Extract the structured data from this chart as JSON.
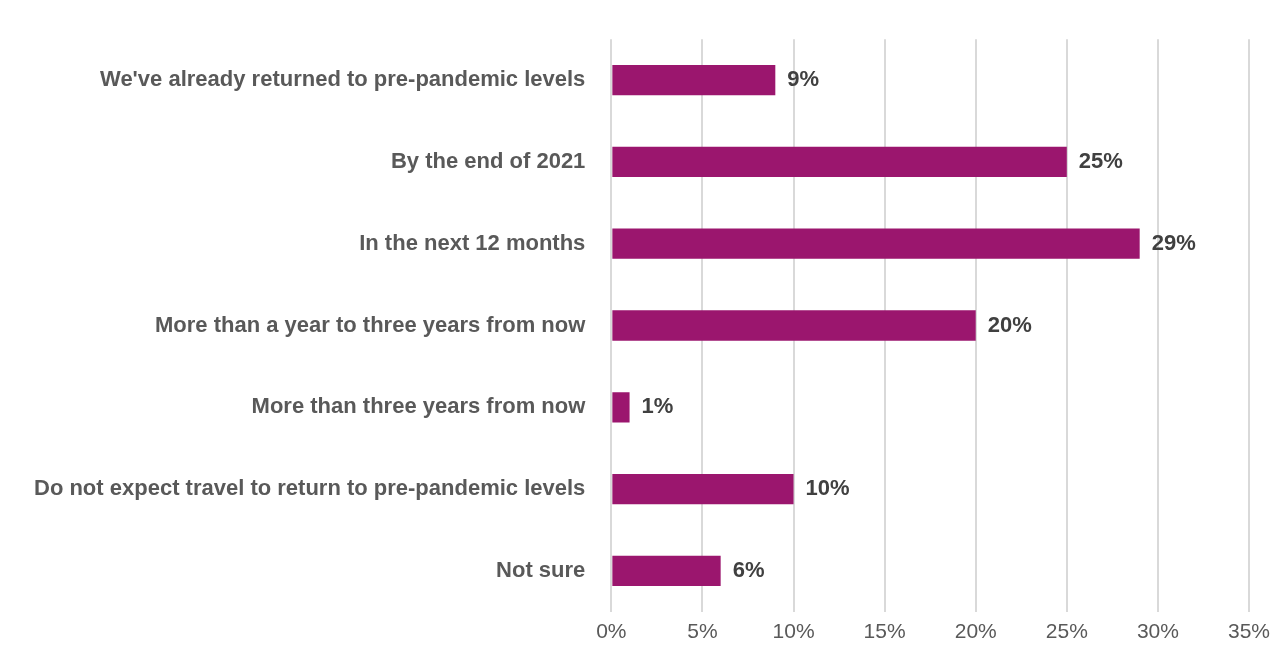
{
  "chart_data": {
    "type": "bar",
    "orientation": "horizontal",
    "categories": [
      "We've already returned to pre-pandemic levels",
      "By the end of 2021",
      "In the next 12 months",
      "More than a year to three years from now",
      "More than three years from now",
      "Do not expect travel to return to pre-pandemic levels",
      "Not sure"
    ],
    "values": [
      9,
      25,
      29,
      20,
      1,
      10,
      6
    ],
    "color": "#9b166e",
    "xlim": [
      0,
      35
    ],
    "xticks": [
      {
        "value": 0,
        "label": "0%"
      },
      {
        "value": 5,
        "label": "5%"
      },
      {
        "value": 10,
        "label": "10%"
      },
      {
        "value": 15,
        "label": "15%"
      },
      {
        "value": 20,
        "label": "20%"
      },
      {
        "value": 25,
        "label": "25%"
      },
      {
        "value": 30,
        "label": "30%"
      },
      {
        "value": 35,
        "label": "35%"
      }
    ],
    "value_labels": [
      "9%",
      "25%",
      "29%",
      "20%",
      "1%",
      "10%",
      "6%"
    ],
    "grid": "x"
  }
}
